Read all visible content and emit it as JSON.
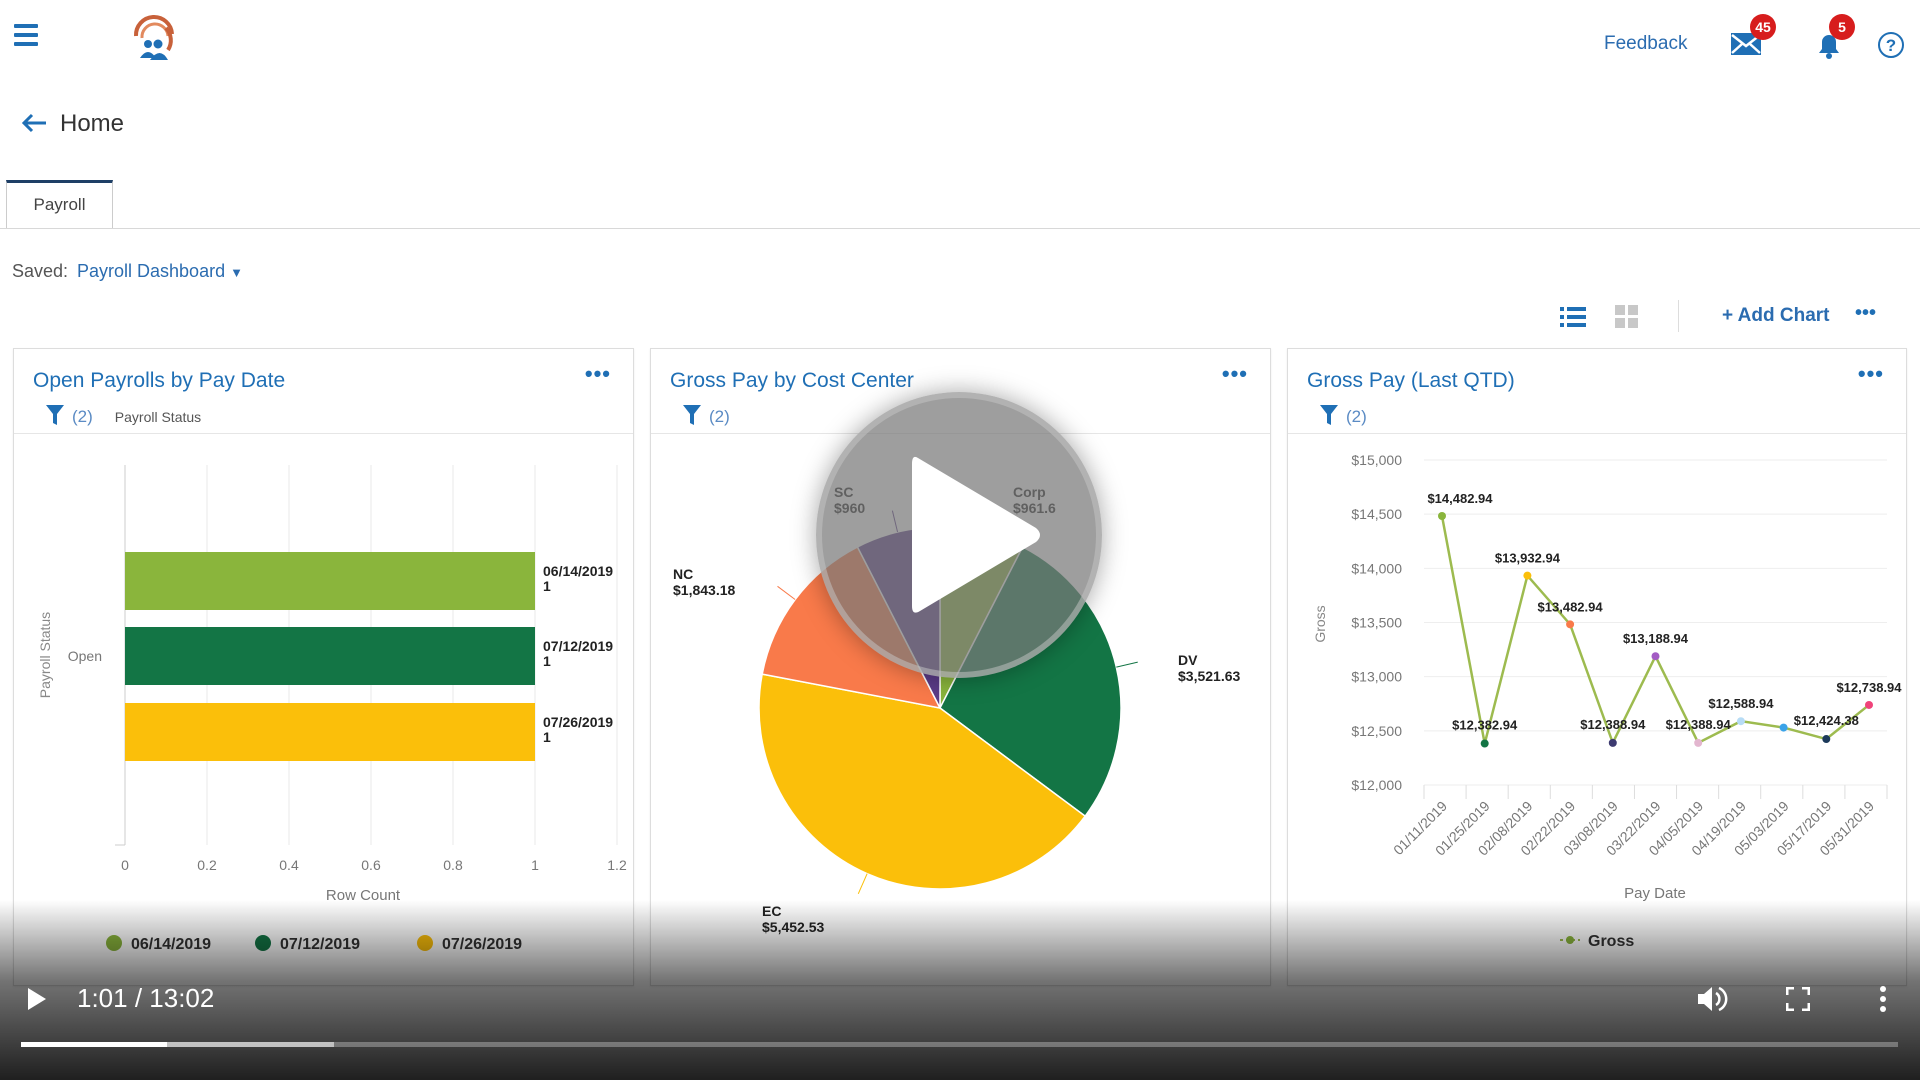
{
  "header": {
    "feedback": "Feedback",
    "mail_count": "45",
    "notification_count": "5",
    "icons": [
      "menu-icon",
      "logo",
      "mail-icon",
      "bell-icon",
      "help-icon"
    ]
  },
  "page": {
    "title": "Home",
    "tabs": [
      {
        "label": "Payroll",
        "active": true
      }
    ],
    "saved_label": "Saved:",
    "saved_value": "Payroll Dashboard"
  },
  "toolbar": {
    "add_chart": "+ Add Chart",
    "more": "•••"
  },
  "colors": {
    "accent": "#1f6fb5",
    "badge": "#d71d1d"
  },
  "cards": [
    {
      "title": "Open Payrolls by Pay Date",
      "filter_count": "(2)",
      "filter_label": "Payroll Status",
      "more": "•••"
    },
    {
      "title": "Gross Pay by Cost Center",
      "filter_count": "(2)",
      "more": "•••"
    },
    {
      "title": "Gross Pay (Last QTD)",
      "filter_count": "(2)",
      "more": "•••"
    }
  ],
  "chart_data": [
    {
      "type": "bar",
      "orientation": "horizontal",
      "categories": [
        "Open"
      ],
      "xlabel": "Row Count",
      "ylabel": "Payroll Status",
      "xlim": [
        0,
        1.2
      ],
      "xticks": [
        "0",
        "0.2",
        "0.4",
        "0.6",
        "0.8",
        "1",
        "1.2"
      ],
      "series": [
        {
          "name": "06/14/2019",
          "values": [
            1
          ],
          "color": "#8ab53c"
        },
        {
          "name": "07/12/2019",
          "values": [
            1
          ],
          "color": "#137545"
        },
        {
          "name": "07/26/2019",
          "values": [
            1
          ],
          "color": "#fbbf0a"
        }
      ],
      "legend": "bottom"
    },
    {
      "type": "pie",
      "slices": [
        {
          "label": "Corp",
          "value": 961.6,
          "value_label": "$961.6",
          "color": "#8ab53c"
        },
        {
          "label": "DV",
          "value": 3521.63,
          "value_label": "$3,521.63",
          "color": "#137545"
        },
        {
          "label": "EC",
          "value": 5452.53,
          "value_label": "$5,452.53",
          "color": "#fbbf0a"
        },
        {
          "label": "NC",
          "value": 1843.18,
          "value_label": "$1,843.18",
          "color": "#f97a4a"
        },
        {
          "label": "SC",
          "value": 960,
          "value_label": "$960",
          "color": "#5b3c88"
        }
      ]
    },
    {
      "type": "line",
      "xlabel": "Pay Date",
      "ylabel": "Gross",
      "ylim": [
        12000,
        15000
      ],
      "yticks": [
        "$12,000",
        "$12,500",
        "$13,000",
        "$13,500",
        "$14,000",
        "$14,500",
        "$15,000"
      ],
      "x": [
        "01/11/2019",
        "01/25/2019",
        "02/08/2019",
        "02/22/2019",
        "03/08/2019",
        "03/22/2019",
        "04/05/2019",
        "04/19/2019",
        "05/03/2019",
        "05/17/2019",
        "05/31/2019"
      ],
      "series": [
        {
          "name": "Gross",
          "color": "#9dbb4f",
          "values": [
            14482.94,
            12382.94,
            13932.94,
            13482.94,
            12388.94,
            13188.94,
            12388.94,
            12588.94,
            12530,
            12424.38,
            12738.94
          ],
          "labels": [
            "$14,482.94",
            "$12,382.94",
            "$13,932.94",
            "$13,482.94",
            "$12,388.94",
            "$13,188.94",
            "$12,388.94",
            "$12,588.94",
            "",
            "$12,424.38",
            "$12,738.94"
          ],
          "point_colors": [
            "#8ab53c",
            "#137545",
            "#fbbf0a",
            "#f97a4a",
            "#3d3a70",
            "#a35cc4",
            "#e3b6cf",
            "#b7dcf5",
            "#3aa3e8",
            "#1c3a5a",
            "#f0437a"
          ]
        }
      ],
      "legend": "bottom"
    }
  ],
  "video": {
    "time": "1:01 / 13:02",
    "played": 0.078,
    "buffered": 0.167
  }
}
